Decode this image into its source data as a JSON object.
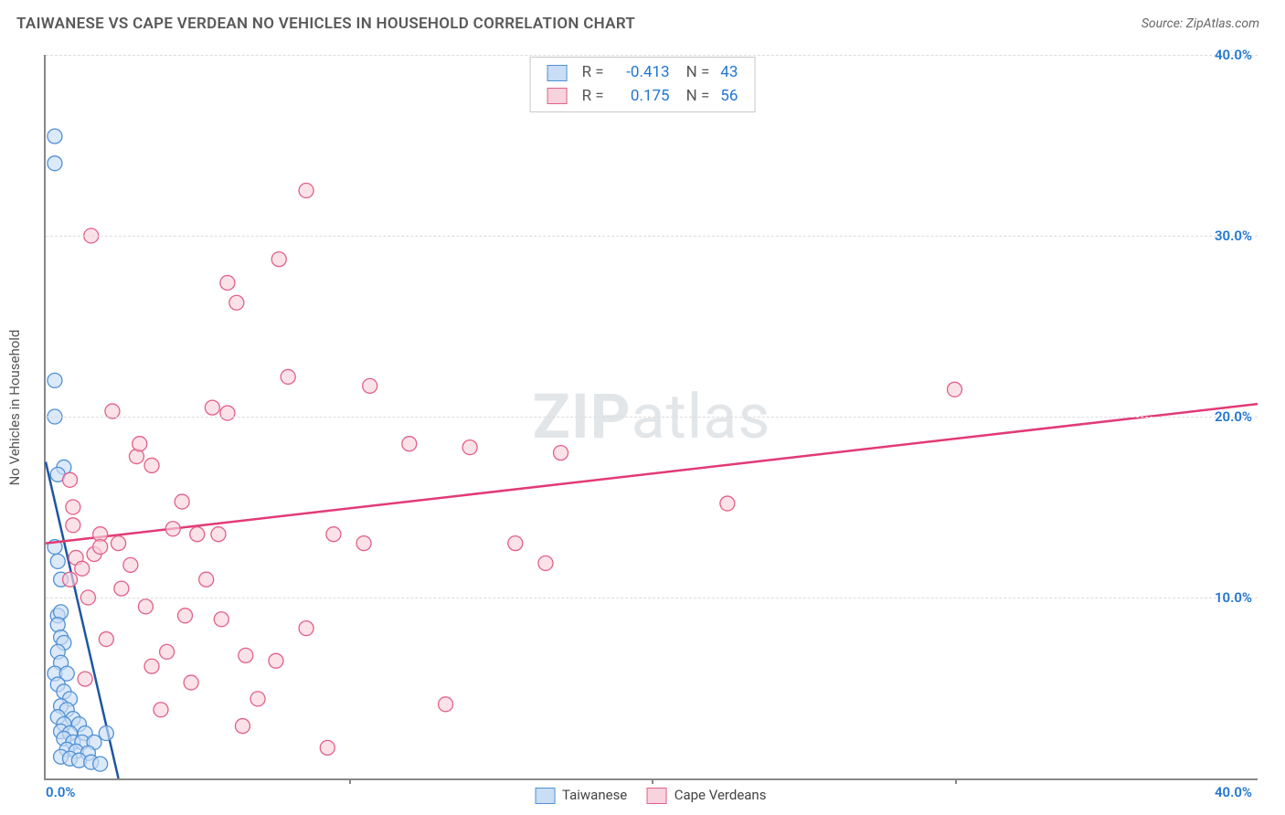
{
  "title": "TAIWANESE VS CAPE VERDEAN NO VEHICLES IN HOUSEHOLD CORRELATION CHART",
  "source": "Source: ZipAtlas.com",
  "ylabel": "No Vehicles in Household",
  "watermark_bold": "ZIP",
  "watermark_rest": "atlas",
  "xlim": [
    0,
    40
  ],
  "ylim": [
    0,
    40
  ],
  "x_tick_origin": "0.0%",
  "x_tick_max": "40.0%",
  "x_inner_ticks": [
    10,
    20,
    30
  ],
  "y_grid": [
    {
      "v": 10,
      "label": "10.0%"
    },
    {
      "v": 20,
      "label": "20.0%"
    },
    {
      "v": 30,
      "label": "30.0%"
    },
    {
      "v": 40,
      "label": "40.0%"
    }
  ],
  "series": [
    {
      "name": "Taiwanese",
      "fill": "#c9ddf4",
      "stroke": "#4f91d6",
      "stroke_dark": "#1e55a5",
      "r": -0.413,
      "n": 43,
      "trend": {
        "x1": 0,
        "y1": 17.5,
        "x2": 2.4,
        "y2": 0
      },
      "points": [
        [
          0.3,
          35.5
        ],
        [
          0.3,
          34.0
        ],
        [
          0.6,
          17.2
        ],
        [
          0.3,
          22.0
        ],
        [
          0.3,
          20.0
        ],
        [
          0.4,
          16.8
        ],
        [
          0.3,
          12.8
        ],
        [
          0.5,
          11.0
        ],
        [
          0.4,
          9.0
        ],
        [
          0.5,
          9.2
        ],
        [
          0.4,
          8.5
        ],
        [
          0.5,
          7.8
        ],
        [
          0.6,
          7.5
        ],
        [
          0.4,
          7.0
        ],
        [
          0.5,
          6.4
        ],
        [
          0.3,
          5.8
        ],
        [
          0.7,
          5.8
        ],
        [
          0.4,
          5.2
        ],
        [
          0.6,
          4.8
        ],
        [
          0.8,
          4.4
        ],
        [
          0.5,
          4.0
        ],
        [
          0.7,
          3.8
        ],
        [
          0.4,
          3.4
        ],
        [
          0.9,
          3.3
        ],
        [
          0.6,
          3.0
        ],
        [
          1.1,
          3.0
        ],
        [
          0.5,
          2.6
        ],
        [
          0.8,
          2.5
        ],
        [
          1.3,
          2.5
        ],
        [
          0.6,
          2.2
        ],
        [
          0.9,
          2.0
        ],
        [
          1.2,
          2.0
        ],
        [
          1.6,
          2.0
        ],
        [
          0.7,
          1.6
        ],
        [
          1.0,
          1.5
        ],
        [
          1.4,
          1.4
        ],
        [
          0.5,
          1.2
        ],
        [
          0.8,
          1.1
        ],
        [
          1.1,
          1.0
        ],
        [
          1.5,
          0.9
        ],
        [
          1.8,
          0.8
        ],
        [
          2.0,
          2.5
        ],
        [
          0.4,
          12.0
        ]
      ]
    },
    {
      "name": "Cape Verdeans",
      "fill": "#f8d2dc",
      "stroke": "#e26089",
      "stroke_dark": "#e23a76",
      "r": 0.175,
      "n": 56,
      "trend": {
        "x1": 0,
        "y1": 13.0,
        "x2": 40,
        "y2": 20.7
      },
      "points": [
        [
          8.6,
          32.5
        ],
        [
          1.5,
          30.0
        ],
        [
          7.7,
          28.7
        ],
        [
          6.0,
          27.4
        ],
        [
          6.3,
          26.3
        ],
        [
          8.0,
          22.2
        ],
        [
          10.7,
          21.7
        ],
        [
          5.5,
          20.5
        ],
        [
          2.2,
          20.3
        ],
        [
          12.0,
          18.5
        ],
        [
          14.0,
          18.3
        ],
        [
          17.0,
          18.0
        ],
        [
          30.0,
          21.5
        ],
        [
          22.5,
          15.2
        ],
        [
          3.0,
          17.8
        ],
        [
          3.5,
          17.3
        ],
        [
          4.5,
          15.3
        ],
        [
          0.8,
          16.5
        ],
        [
          0.9,
          15.0
        ],
        [
          1.8,
          13.5
        ],
        [
          2.4,
          13.0
        ],
        [
          4.2,
          13.8
        ],
        [
          5.0,
          13.5
        ],
        [
          5.7,
          13.5
        ],
        [
          9.5,
          13.5
        ],
        [
          10.5,
          13.0
        ],
        [
          16.5,
          11.9
        ],
        [
          1.6,
          12.4
        ],
        [
          1.0,
          12.2
        ],
        [
          2.8,
          11.8
        ],
        [
          1.2,
          11.6
        ],
        [
          5.3,
          11.0
        ],
        [
          2.5,
          10.5
        ],
        [
          1.4,
          10.0
        ],
        [
          3.3,
          9.5
        ],
        [
          4.6,
          9.0
        ],
        [
          5.8,
          8.8
        ],
        [
          8.6,
          8.3
        ],
        [
          2.0,
          7.7
        ],
        [
          4.0,
          7.0
        ],
        [
          6.6,
          6.8
        ],
        [
          7.6,
          6.5
        ],
        [
          3.5,
          6.2
        ],
        [
          1.3,
          5.5
        ],
        [
          4.8,
          5.3
        ],
        [
          7.0,
          4.4
        ],
        [
          13.2,
          4.1
        ],
        [
          3.8,
          3.8
        ],
        [
          6.5,
          2.9
        ],
        [
          9.3,
          1.7
        ],
        [
          1.8,
          12.8
        ],
        [
          3.1,
          18.5
        ],
        [
          0.9,
          14.0
        ],
        [
          15.5,
          13.0
        ],
        [
          6.0,
          20.2
        ],
        [
          0.8,
          11.0
        ]
      ]
    }
  ],
  "legend_bottom": true
}
